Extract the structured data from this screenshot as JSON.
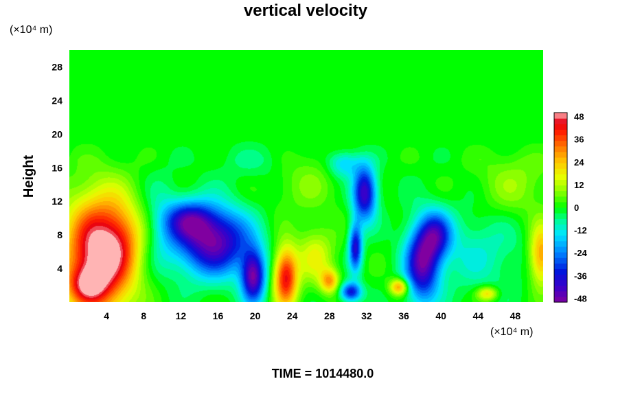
{
  "chart_data": {
    "type": "heatmap",
    "title": "vertical velocity",
    "ylabel": "Height",
    "xlabel": "",
    "y_unit": "(×10⁴ m)",
    "x_unit": "(×10⁴ m)",
    "footer": "TIME = 1014480.0",
    "xlim": [
      0,
      51
    ],
    "ylim": [
      0,
      30
    ],
    "x_ticks": [
      4,
      8,
      12,
      16,
      20,
      24,
      28,
      32,
      36,
      40,
      44,
      48
    ],
    "y_ticks": [
      4,
      8,
      12,
      16,
      20,
      24,
      28
    ],
    "colorbar": {
      "vmin": -50,
      "vmax": 50,
      "ticks": [
        -48,
        -36,
        -24,
        -12,
        0,
        12,
        24,
        36,
        48
      ],
      "tick_labels": [
        "-48",
        "-36",
        "-24",
        "-12",
        "0",
        "12",
        "24",
        "36",
        "48"
      ]
    },
    "features": [
      {
        "x": 3.2,
        "y": 5.5,
        "sx": 2.6,
        "sy": 5.0,
        "value": 55
      },
      {
        "x": 1.8,
        "y": 2.0,
        "sx": 1.5,
        "sy": 1.5,
        "value": 20
      },
      {
        "x": 5.8,
        "y": 7.5,
        "sx": 1.5,
        "sy": 3.0,
        "value": 12
      },
      {
        "x": 15.5,
        "y": 7.2,
        "sx": 2.8,
        "sy": 2.8,
        "value": -48
      },
      {
        "x": 12.8,
        "y": 9.8,
        "sx": 1.8,
        "sy": 1.6,
        "value": -28
      },
      {
        "x": 19.8,
        "y": 3.0,
        "sx": 0.9,
        "sy": 2.2,
        "value": -46
      },
      {
        "x": 23.3,
        "y": 3.0,
        "sx": 0.9,
        "sy": 2.5,
        "value": 44
      },
      {
        "x": 26.5,
        "y": 5.5,
        "sx": 1.4,
        "sy": 2.4,
        "value": 16
      },
      {
        "x": 28.0,
        "y": 2.5,
        "sx": 0.7,
        "sy": 1.0,
        "value": 26
      },
      {
        "x": 31.8,
        "y": 13.0,
        "sx": 0.9,
        "sy": 2.3,
        "value": -44
      },
      {
        "x": 30.8,
        "y": 6.5,
        "sx": 0.5,
        "sy": 2.0,
        "value": -38
      },
      {
        "x": 30.3,
        "y": 1.2,
        "sx": 0.8,
        "sy": 0.8,
        "value": -36
      },
      {
        "x": 38.0,
        "y": 4.5,
        "sx": 1.3,
        "sy": 3.2,
        "value": -44
      },
      {
        "x": 39.5,
        "y": 8.0,
        "sx": 1.2,
        "sy": 2.0,
        "value": -30
      },
      {
        "x": 35.5,
        "y": 1.8,
        "sx": 0.7,
        "sy": 0.7,
        "value": 30
      },
      {
        "x": 45.0,
        "y": 1.0,
        "sx": 0.8,
        "sy": 0.6,
        "value": 22
      },
      {
        "x": 50.8,
        "y": 5.5,
        "sx": 0.9,
        "sy": 2.5,
        "value": 30
      },
      {
        "x": 44.0,
        "y": 6.0,
        "sx": 3.5,
        "sy": 3.5,
        "value": -10
      },
      {
        "x": 10.0,
        "y": 9.0,
        "sx": 1.4,
        "sy": 4.0,
        "value": -8
      },
      {
        "x": 21.0,
        "y": 17.0,
        "sx": 3.0,
        "sy": 2.0,
        "value": -7
      },
      {
        "x": 29.5,
        "y": 16.5,
        "sx": 1.2,
        "sy": 1.2,
        "value": -18
      },
      {
        "x": 25.0,
        "y": 15.0,
        "sx": 3.0,
        "sy": 3.0,
        "value": 8
      },
      {
        "x": 48.0,
        "y": 14.0,
        "sx": 3.0,
        "sy": 3.0,
        "value": 9
      }
    ]
  }
}
